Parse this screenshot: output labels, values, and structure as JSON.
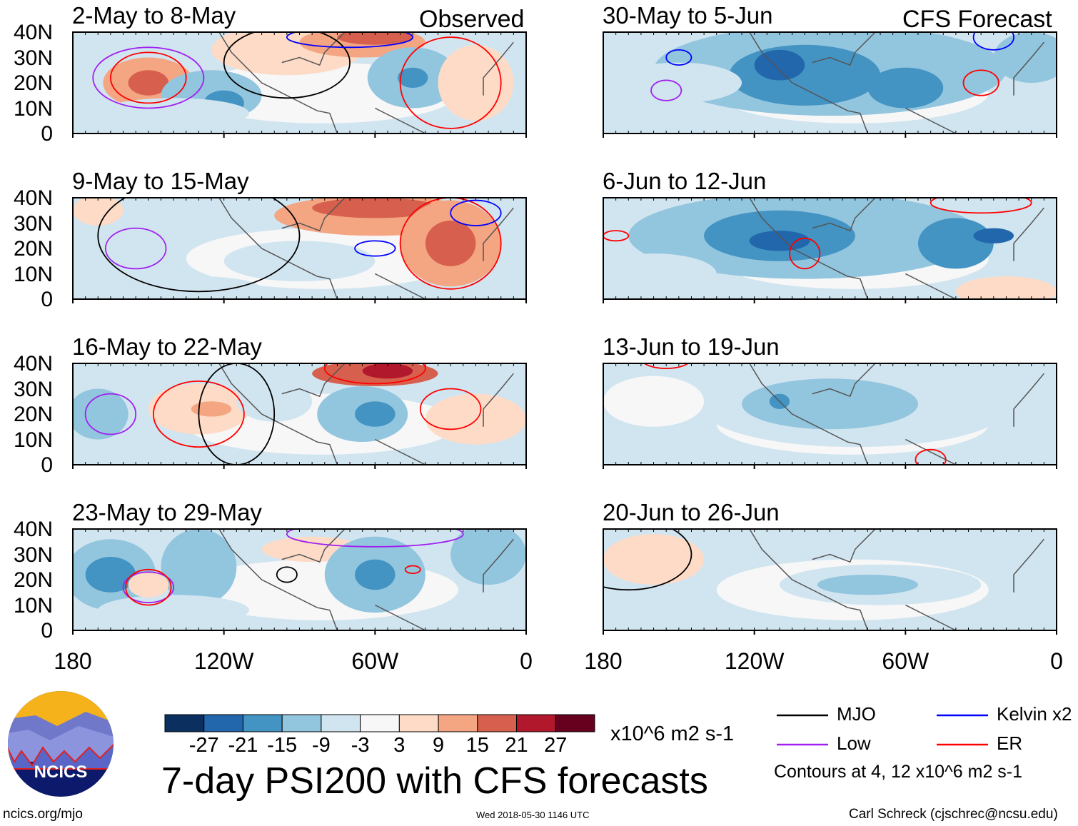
{
  "chart_data": {
    "type": "heatmap",
    "title": "7-day PSI200 with CFS forecasts",
    "units": "x10^6 m2 s-1",
    "column_labels": [
      "Observed",
      "CFS Forecast"
    ],
    "panels": [
      {
        "period": "2-May to 8-May",
        "source": "Observed"
      },
      {
        "period": "9-May to 15-May",
        "source": "Observed"
      },
      {
        "period": "16-May to 22-May",
        "source": "Observed"
      },
      {
        "period": "23-May to 29-May",
        "source": "Observed"
      },
      {
        "period": "30-May to 5-Jun",
        "source": "CFS Forecast"
      },
      {
        "period": "6-Jun to 12-Jun",
        "source": "CFS Forecast"
      },
      {
        "period": "13-Jun to 19-Jun",
        "source": "CFS Forecast"
      },
      {
        "period": "20-Jun to 26-Jun",
        "source": "CFS Forecast"
      }
    ],
    "lat_ticks": [
      "40N",
      "30N",
      "20N",
      "10N",
      "0"
    ],
    "lon_ticks": [
      "180",
      "120W",
      "60W",
      "0"
    ],
    "lat_range": [
      0,
      40
    ],
    "lon_range": [
      -180,
      0
    ],
    "colorbar": {
      "levels": [
        "-27",
        "-21",
        "-15",
        "-9",
        "-3",
        "3",
        "9",
        "15",
        "21",
        "27"
      ],
      "colors": [
        "#0b305f",
        "#2266ac",
        "#4393c3",
        "#92c5de",
        "#d1e5f0",
        "#f7f7f7",
        "#fddbc7",
        "#f4a582",
        "#d6604d",
        "#b2182b",
        "#67001f"
      ]
    },
    "legend": [
      {
        "label": "MJO",
        "color": "#000000"
      },
      {
        "label": "Kelvin x2",
        "color": "#0000ff"
      },
      {
        "label": "Low",
        "color": "#a020f0"
      },
      {
        "label": "ER",
        "color": "#ff0000"
      }
    ],
    "contour_note": "Contours at 4, 12 x10^6 m2 s-1"
  },
  "footer": {
    "logo_text": "NCICS",
    "url": "ncics.org/mjo",
    "timestamp": "Wed 2018-05-30 1146 UTC",
    "author": "Carl Schreck (cjschrec@ncsu.edu)"
  }
}
